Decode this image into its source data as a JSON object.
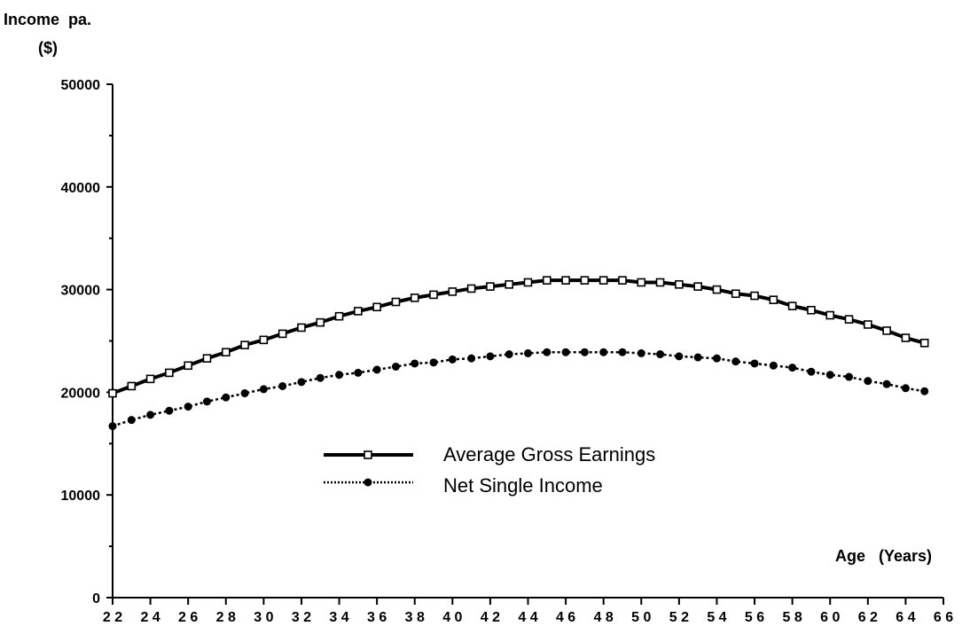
{
  "chart_data": {
    "type": "line",
    "ylabel_line1": "Income  pa.",
    "ylabel_line2": "($)",
    "xlabel": "Age   (Years)",
    "ylim": [
      0,
      50000
    ],
    "xlim": [
      22,
      66
    ],
    "yticks": [
      0,
      10000,
      20000,
      30000,
      40000,
      50000
    ],
    "ytick_labels": [
      "0",
      "10000",
      "20000",
      "30000",
      "40000",
      "50000"
    ],
    "xticks": [
      22,
      24,
      26,
      28,
      30,
      32,
      34,
      36,
      38,
      40,
      42,
      44,
      46,
      48,
      50,
      52,
      54,
      56,
      58,
      60,
      62,
      64,
      66
    ],
    "xtick_labels": [
      "2 2",
      "2 4",
      "2 6",
      "2 8",
      "3 0",
      "3 2",
      "3 4",
      "3 6",
      "3 8",
      "4 0",
      "4 2",
      "4 4",
      "4 6",
      "4 8",
      "5 0",
      "5 2",
      "5 4",
      "5 6",
      "5 8",
      "6 0",
      "6 2",
      "6 4",
      "6 6"
    ],
    "grid": false,
    "legend_position": "center",
    "x": [
      22,
      23,
      24,
      25,
      26,
      27,
      28,
      29,
      30,
      31,
      32,
      33,
      34,
      35,
      36,
      37,
      38,
      39,
      40,
      41,
      42,
      43,
      44,
      45,
      46,
      47,
      48,
      49,
      50,
      51,
      52,
      53,
      54,
      55,
      56,
      57,
      58,
      59,
      60,
      61,
      62,
      63,
      64,
      65
    ],
    "series": [
      {
        "name": "Average Gross Earnings",
        "marker": "open-square",
        "line": "solid",
        "values": [
          19900,
          20600,
          21300,
          21900,
          22600,
          23300,
          23900,
          24600,
          25100,
          25700,
          26300,
          26800,
          27400,
          27900,
          28300,
          28800,
          29200,
          29500,
          29800,
          30100,
          30300,
          30500,
          30700,
          30900,
          30900,
          30900,
          30900,
          30900,
          30700,
          30700,
          30500,
          30300,
          30000,
          29600,
          29400,
          29000,
          28400,
          28000,
          27500,
          27100,
          26600,
          26000,
          25300,
          24800
        ]
      },
      {
        "name": "Net Single Income",
        "marker": "filled-circle",
        "line": "dotted",
        "values": [
          16700,
          17300,
          17800,
          18200,
          18600,
          19100,
          19500,
          19900,
          20300,
          20600,
          21000,
          21400,
          21700,
          21900,
          22200,
          22500,
          22800,
          22900,
          23200,
          23300,
          23500,
          23700,
          23800,
          23900,
          23900,
          23900,
          23900,
          23900,
          23800,
          23700,
          23500,
          23400,
          23300,
          23000,
          22800,
          22600,
          22400,
          22000,
          21700,
          21500,
          21100,
          20800,
          20400,
          20100
        ]
      }
    ]
  }
}
